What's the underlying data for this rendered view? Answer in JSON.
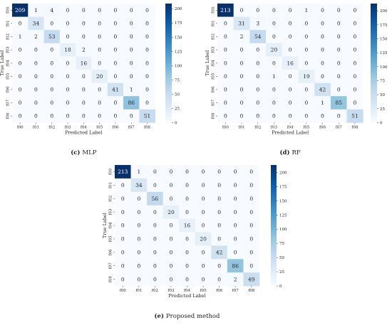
{
  "chart_data": [
    {
      "type": "heatmap",
      "caption_letter": "(c)",
      "caption_text": "MLP",
      "xlabel": "Predicted Label",
      "ylabel": "True Label",
      "labels": [
        "f00",
        "f01",
        "f02",
        "f03",
        "f04",
        "f05",
        "f06",
        "f07",
        "f08"
      ],
      "matrix": [
        [
          209,
          1,
          4,
          0,
          0,
          0,
          0,
          0,
          0
        ],
        [
          0,
          34,
          0,
          0,
          0,
          0,
          0,
          0,
          0
        ],
        [
          1,
          2,
          53,
          0,
          0,
          0,
          0,
          0,
          0
        ],
        [
          0,
          0,
          0,
          18,
          2,
          0,
          0,
          0,
          0
        ],
        [
          0,
          0,
          0,
          0,
          16,
          0,
          0,
          0,
          0
        ],
        [
          0,
          0,
          0,
          0,
          0,
          20,
          0,
          0,
          0
        ],
        [
          0,
          0,
          0,
          0,
          0,
          0,
          41,
          1,
          0
        ],
        [
          0,
          0,
          0,
          0,
          0,
          0,
          0,
          86,
          0
        ],
        [
          0,
          0,
          0,
          0,
          0,
          0,
          0,
          0,
          51
        ]
      ],
      "colorbar_ticks": [
        0,
        25,
        50,
        75,
        100,
        125,
        150,
        175,
        200
      ],
      "colorbar_range": [
        0,
        209
      ]
    },
    {
      "type": "heatmap",
      "caption_letter": "(d)",
      "caption_text": "RF",
      "xlabel": "Predicted Label",
      "ylabel": "True Label",
      "labels": [
        "f00",
        "f01",
        "f02",
        "f03",
        "f04",
        "f05",
        "f06",
        "f07",
        "f08"
      ],
      "matrix": [
        [
          213,
          0,
          0,
          0,
          0,
          1,
          0,
          0,
          0
        ],
        [
          0,
          31,
          3,
          0,
          0,
          0,
          0,
          0,
          0
        ],
        [
          0,
          2,
          54,
          0,
          0,
          0,
          0,
          0,
          0
        ],
        [
          0,
          0,
          0,
          20,
          0,
          0,
          0,
          0,
          0
        ],
        [
          0,
          0,
          0,
          0,
          16,
          0,
          0,
          0,
          0
        ],
        [
          0,
          0,
          0,
          1,
          0,
          19,
          0,
          0,
          0
        ],
        [
          0,
          0,
          0,
          0,
          0,
          0,
          42,
          0,
          0
        ],
        [
          0,
          0,
          0,
          0,
          0,
          0,
          1,
          85,
          0
        ],
        [
          0,
          0,
          0,
          0,
          0,
          0,
          0,
          0,
          51
        ]
      ],
      "colorbar_ticks": [
        0,
        25,
        50,
        75,
        100,
        125,
        150,
        175,
        200
      ],
      "colorbar_range": [
        0,
        213
      ]
    },
    {
      "type": "heatmap",
      "caption_letter": "(e)",
      "caption_text": "Proposed method",
      "xlabel": "Predicted Label",
      "ylabel": "True Label",
      "labels": [
        "f00",
        "f01",
        "f02",
        "f03",
        "f04",
        "f05",
        "f06",
        "f07",
        "f08"
      ],
      "matrix": [
        [
          213,
          1,
          0,
          0,
          0,
          0,
          0,
          0,
          0
        ],
        [
          0,
          34,
          0,
          0,
          0,
          0,
          0,
          0,
          0
        ],
        [
          0,
          0,
          56,
          0,
          0,
          0,
          0,
          0,
          0
        ],
        [
          0,
          0,
          0,
          20,
          0,
          0,
          0,
          0,
          0
        ],
        [
          0,
          0,
          0,
          0,
          16,
          0,
          0,
          0,
          0
        ],
        [
          0,
          0,
          0,
          0,
          0,
          20,
          0,
          0,
          0
        ],
        [
          0,
          0,
          0,
          0,
          0,
          0,
          42,
          0,
          0
        ],
        [
          0,
          0,
          0,
          0,
          0,
          0,
          0,
          86,
          0
        ],
        [
          0,
          0,
          0,
          0,
          0,
          0,
          0,
          2,
          49
        ]
      ],
      "colorbar_ticks": [
        0,
        25,
        50,
        75,
        100,
        125,
        150,
        175,
        200
      ],
      "colorbar_range": [
        0,
        213
      ]
    }
  ]
}
